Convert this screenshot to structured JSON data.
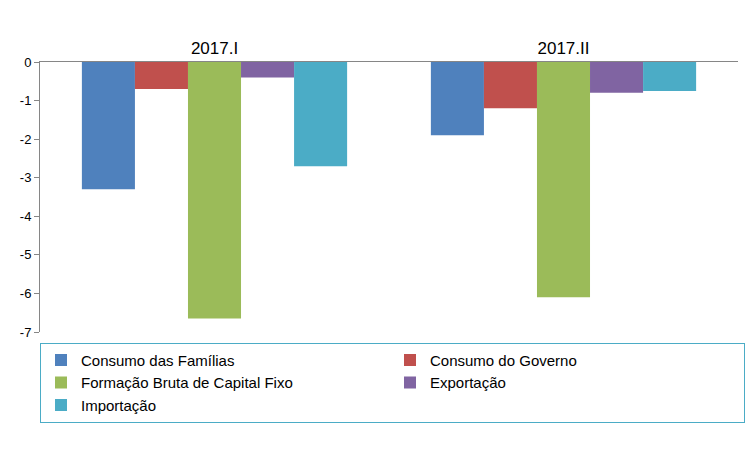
{
  "chart_data": {
    "type": "bar",
    "categories": [
      "2017.I",
      "2017.II"
    ],
    "series": [
      {
        "name": "Consumo das Famílias",
        "color": "#4f81bd",
        "values": [
          -3.3,
          -1.9
        ]
      },
      {
        "name": "Consumo do Governo",
        "color": "#c0504d",
        "values": [
          -0.7,
          -1.2
        ]
      },
      {
        "name": "Formação Bruta de Capital Fixo",
        "color": "#9bbb59",
        "values": [
          -6.65,
          -6.1
        ]
      },
      {
        "name": "Exportação",
        "color": "#8064a2",
        "values": [
          -0.4,
          -0.8
        ]
      },
      {
        "name": "Importação",
        "color": "#4bacc6",
        "values": [
          -2.7,
          -0.75
        ]
      }
    ],
    "ylim": [
      -7,
      0
    ],
    "yticks": [
      0,
      -1,
      -2,
      -3,
      -4,
      -5,
      -6,
      -7
    ],
    "grid": false,
    "legend": "bottom"
  }
}
